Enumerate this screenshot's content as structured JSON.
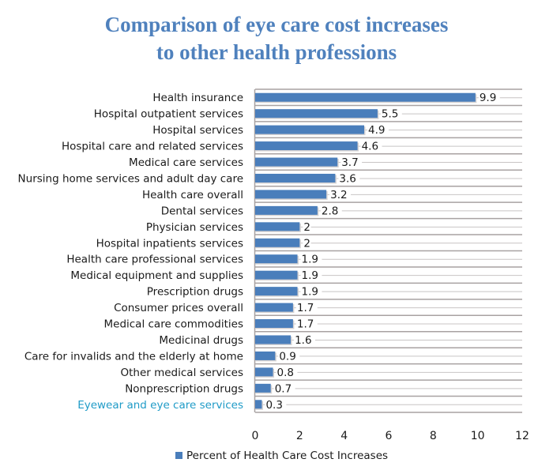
{
  "chart_data": {
    "type": "bar",
    "orientation": "horizontal",
    "title": "Comparison of eye care cost increases to other health professions",
    "title_lines": [
      "Comparison of eye care cost increases",
      "to other health professions"
    ],
    "xlabel": "",
    "ylabel": "",
    "xlim": [
      0,
      12
    ],
    "x_ticks": [
      "0",
      "2",
      "4",
      "6",
      "8",
      "10",
      "12"
    ],
    "x_tick_values": [
      0,
      2,
      4,
      6,
      8,
      10,
      12
    ],
    "grid": true,
    "legend_position": "bottom",
    "categories": [
      "Health insurance",
      "Hospital outpatient services",
      "Hospital services",
      "Hospital care and related services",
      "Medical care services",
      "Nursing home services and adult day care",
      "Health care overall",
      "Dental services",
      "Physician services",
      "Hospital inpatients services",
      "Health care professional services",
      "Medical equipment and supplies",
      "Prescription drugs",
      "Consumer prices overall",
      "Medical care commodities",
      "Medicinal drugs",
      "Care for invalids and the elderly at home",
      "Other medical services",
      "Nonprescription drugs",
      "Eyewear and eye care services"
    ],
    "highlighted_category": "Eyewear and eye care services",
    "series": [
      {
        "name": "Percent of Health Care Cost Increases",
        "color": "#4a7ebb",
        "values": [
          9.9,
          5.5,
          4.9,
          4.6,
          3.7,
          3.6,
          3.2,
          2.8,
          2,
          2,
          1.9,
          1.9,
          1.9,
          1.7,
          1.7,
          1.6,
          0.9,
          0.8,
          0.7,
          0.3
        ],
        "value_labels": [
          "9.9",
          "5.5",
          "4.9",
          "4.6",
          "3.7",
          "3.6",
          "3.2",
          "2.8",
          "2",
          "2",
          "1.9",
          "1.9",
          "1.9",
          "1.7",
          "1.7",
          "1.6",
          "0.9",
          "0.8",
          "0.7",
          "0.3"
        ]
      }
    ]
  },
  "colors": {
    "title": "#4f81bd",
    "bar": "#4a7ebb",
    "highlight_label": "#1f9bc7",
    "gridline": "#c8c4c4",
    "row_separator": "#a8a2a2"
  }
}
